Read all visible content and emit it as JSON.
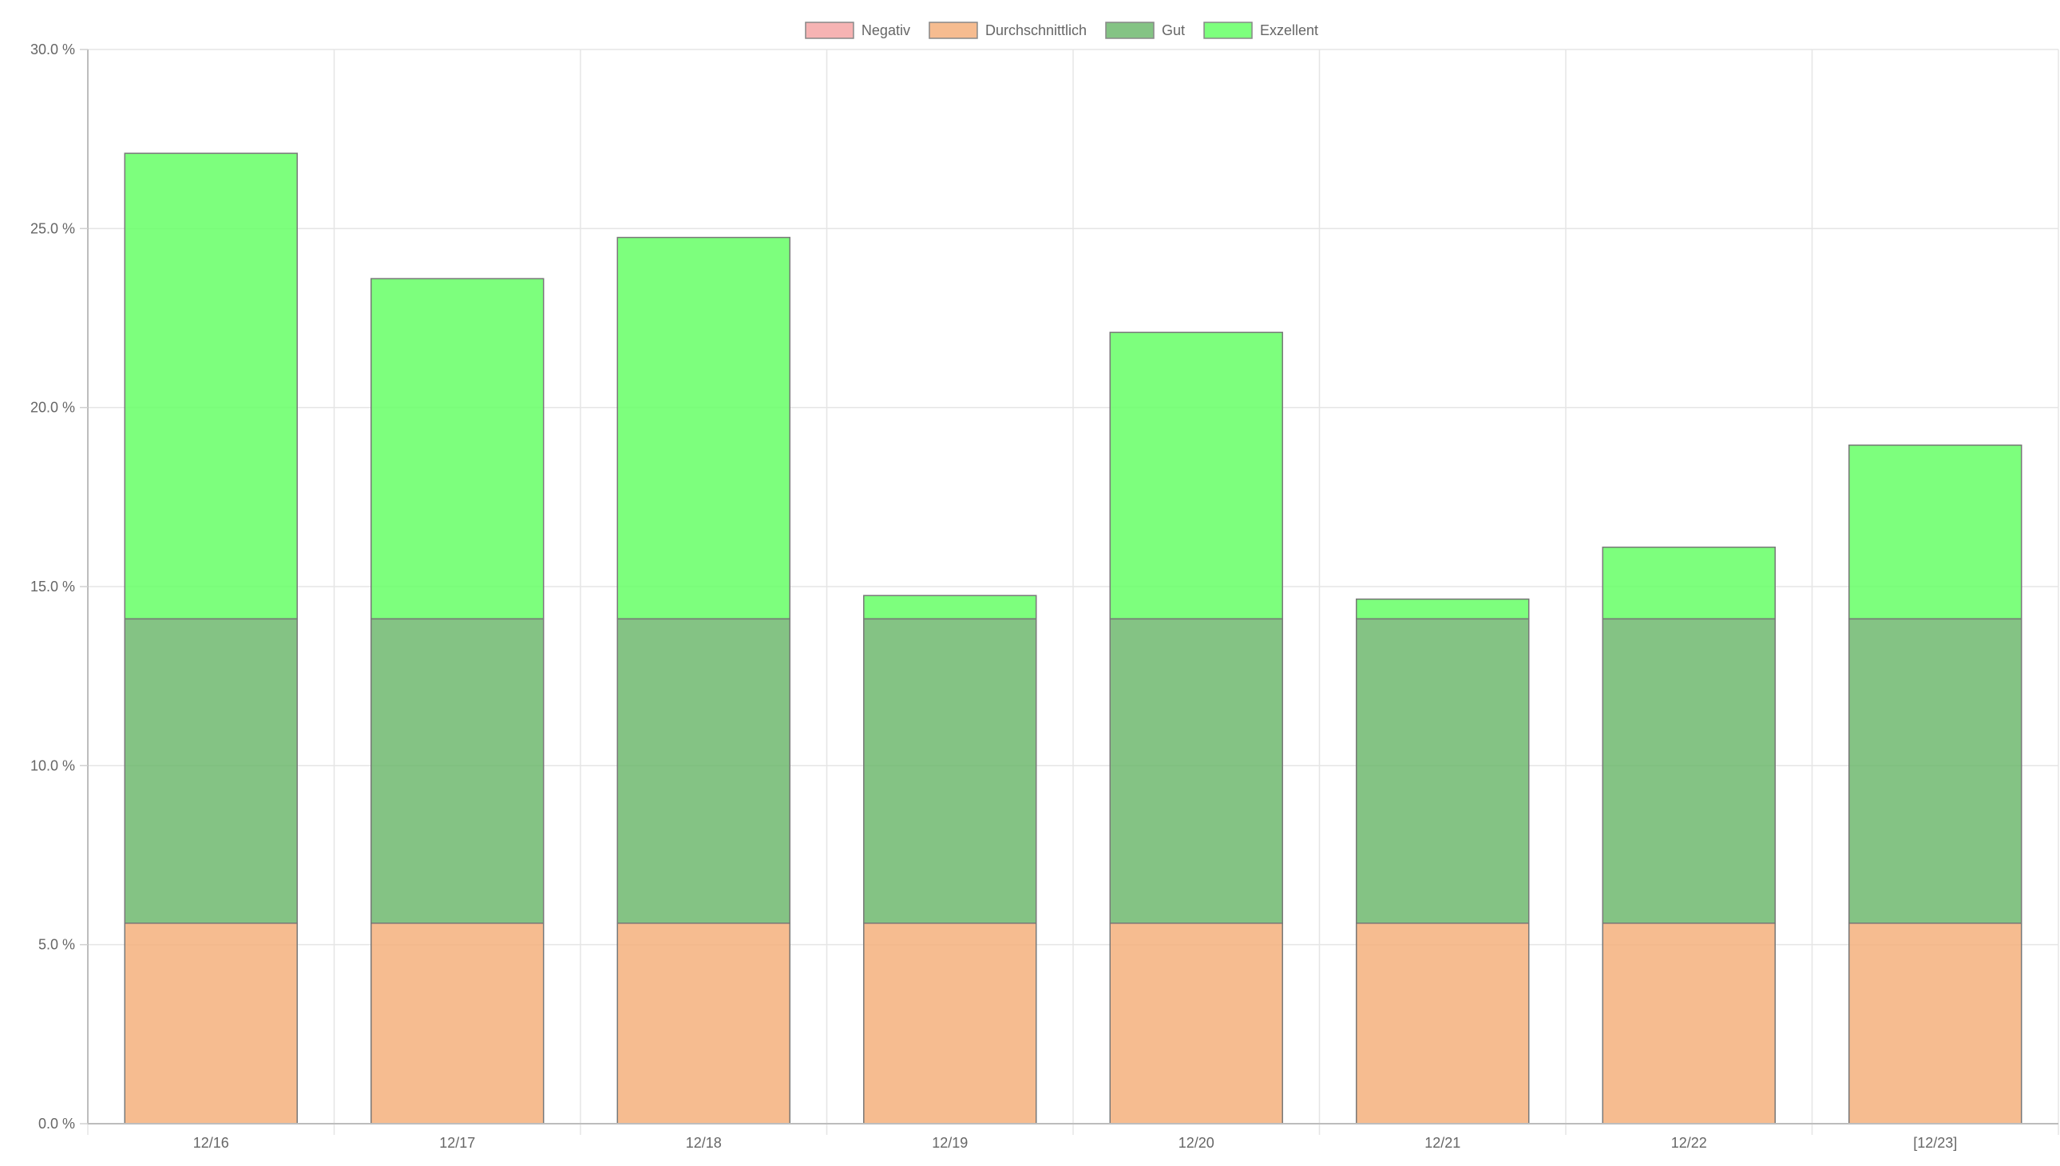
{
  "chart_data": {
    "type": "bar",
    "stacked": true,
    "categories": [
      "12/16",
      "12/17",
      "12/18",
      "12/19",
      "12/20",
      "12/21",
      "12/22",
      "[12/23]"
    ],
    "series": [
      {
        "name": "Negativ",
        "color": "#f4a6a6",
        "values": [
          0,
          0,
          0,
          0,
          0,
          0,
          0,
          0
        ]
      },
      {
        "name": "Durchschnittlich",
        "color": "#f4b07c",
        "values": [
          5.6,
          5.6,
          5.6,
          5.6,
          5.6,
          5.6,
          5.6,
          5.6
        ]
      },
      {
        "name": "Gut",
        "color": "#6fb96f",
        "values": [
          8.5,
          8.5,
          8.5,
          8.5,
          8.5,
          8.5,
          8.5,
          8.5
        ]
      },
      {
        "name": "Exzellent",
        "color": "#66ff66",
        "values": [
          13.0,
          9.5,
          10.65,
          0.65,
          8.0,
          0.55,
          2.0,
          4.85
        ]
      }
    ],
    "ylim": [
      0,
      30
    ],
    "yticks": [
      "0.0 %",
      "5.0 %",
      "10.0 %",
      "15.0 %",
      "20.0 %",
      "25.0 %",
      "30.0 %"
    ],
    "grid": true,
    "legend_position": "top-center"
  }
}
